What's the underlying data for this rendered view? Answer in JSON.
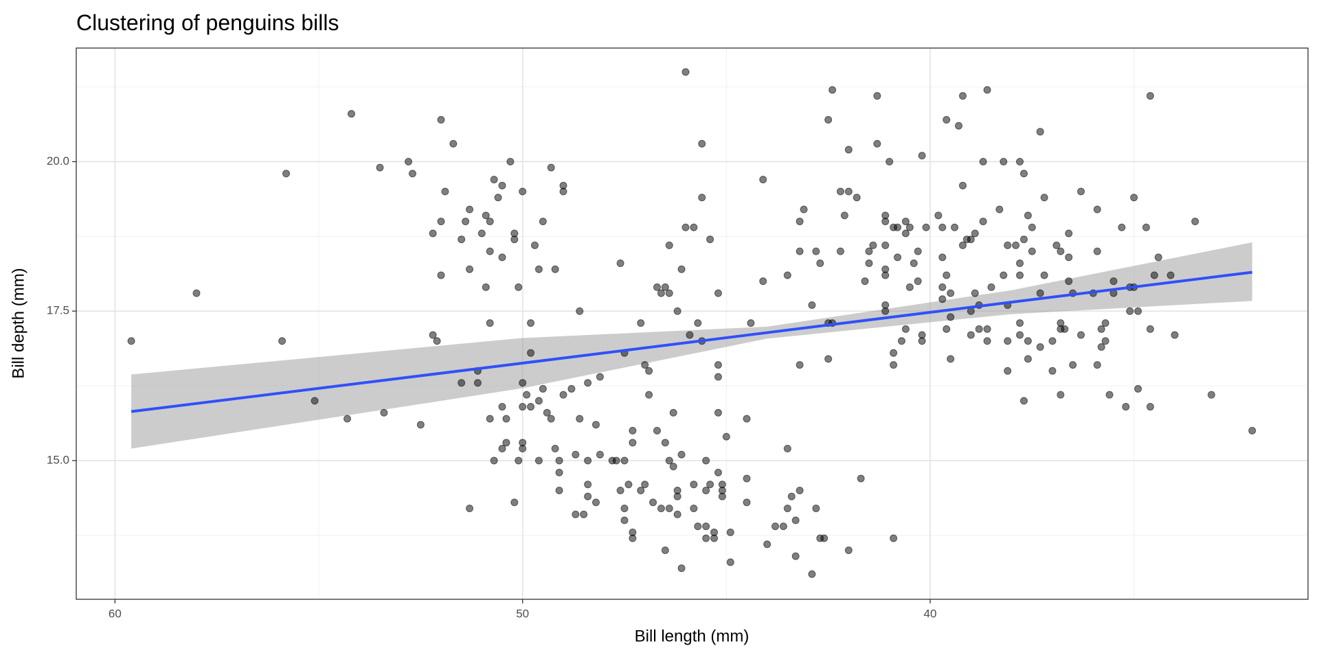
{
  "chart_data": {
    "type": "scatter",
    "title": "Clustering of penguins bills",
    "xlabel": "Bill length (mm)",
    "ylabel": "Bill depth (mm)",
    "x": [
      59.6,
      58.0,
      55.9,
      55.8,
      55.1,
      54.3,
      54.2,
      53.5,
      53.4,
      52.8,
      52.7,
      52.5,
      52.2,
      52.2,
      52.1,
      52.0,
      52.0,
      52.0,
      51.9,
      51.7,
      51.5,
      51.5,
      51.4,
      51.3,
      51.3,
      51.3,
      51.1,
      51.1,
      51.0,
      50.9,
      50.9,
      50.8,
      50.8,
      50.8,
      50.8,
      50.7,
      50.7,
      50.6,
      50.5,
      50.5,
      50.5,
      50.5,
      50.4,
      50.4,
      50.3,
      50.2,
      50.2,
      50.2,
      50.1,
      50.1,
      50.0,
      50.0,
      50.0,
      50.0,
      50.0,
      49.9,
      49.8,
      49.8,
      49.8,
      49.7,
      49.6,
      49.6,
      49.6,
      49.5,
      49.5,
      49.4,
      49.3,
      49.3,
      49.2,
      49.2,
      49.1,
      49.1,
      49.1,
      49.0,
      49.0,
      49.0,
      48.8,
      48.7,
      48.7,
      48.6,
      48.6,
      48.5,
      48.4,
      48.4,
      48.4,
      48.4,
      48.2,
      48.2,
      48.1,
      48.1,
      47.8,
      47.7,
      47.6,
      47.6,
      47.5,
      47.5,
      47.5,
      47.5,
      47.4,
      47.3,
      47.3,
      47.3,
      47.3,
      47.1,
      47.1,
      47.0,
      47.0,
      46.9,
      46.9,
      46.8,
      46.7,
      46.7,
      46.6,
      46.6,
      46.5,
      46.5,
      46.5,
      46.4,
      46.4,
      46.4,
      46.4,
      46.3,
      46.3,
      46.2,
      46.2,
      46.2,
      46.2,
      46.1,
      46.1,
      46.0,
      46.1,
      46.0,
      45.9,
      45.8,
      45.8,
      45.8,
      45.7,
      45.7,
      45.6,
      45.6,
      45.6,
      45.5,
      45.5,
      45.5,
      45.5,
      45.4,
      45.4,
      45.3,
      45.3,
      45.2,
      45.2,
      45.2,
      45.2,
      45.2,
      45.1,
      45.1,
      45.1,
      45.0,
      44.9,
      44.9,
      44.5,
      44.5,
      44.5,
      44.4,
      44.1,
      44.1,
      44.0,
      43.8,
      43.6,
      43.5,
      43.5,
      43.5,
      43.4,
      43.3,
      43.3,
      43.2,
      43.2,
      43.2,
      43.2,
      43.1,
      42.9,
      42.9,
      42.8,
      42.8,
      42.7,
      42.7,
      42.6,
      42.5,
      42.5,
      42.5,
      42.4,
      42.4,
      42.2,
      42.2,
      42.1,
      42.0,
      42.0,
      42.0,
      41.8,
      41.7,
      41.6,
      41.5,
      41.5,
      41.4,
      41.3,
      41.3,
      41.1,
      41.1,
      41.1,
      41.1,
      41.1,
      41.1,
      41.1,
      41.0,
      40.9,
      40.9,
      40.9,
      40.9,
      40.8,
      40.8,
      40.7,
      40.6,
      40.6,
      40.6,
      40.5,
      40.5,
      40.4,
      40.3,
      40.3,
      40.2,
      40.2,
      40.2,
      40.1,
      39.8,
      39.7,
      39.7,
      39.7,
      39.7,
      39.6,
      39.6,
      39.6,
      39.5,
      39.5,
      39.5,
      39.4,
      39.3,
      39.2,
      39.2,
      39.2,
      39.1,
      39.0,
      39.0,
      39.0,
      38.9,
      38.9,
      38.8,
      38.8,
      38.7,
      38.7,
      38.6,
      38.6,
      38.6,
      38.5,
      38.3,
      38.2,
      38.2,
      38.1,
      38.1,
      38.1,
      38.1,
      37.9,
      37.8,
      37.8,
      37.8,
      37.8,
      37.8,
      37.7,
      37.7,
      37.7,
      37.6,
      37.6,
      37.6,
      37.5,
      37.5,
      37.3,
      37.3,
      37.3,
      37.2,
      37.2,
      37.0,
      37.0,
      36.9,
      36.8,
      36.8,
      36.8,
      36.8,
      36.7,
      36.6,
      36.6,
      36.6,
      36.5,
      36.5,
      36.3,
      36.3,
      36.0,
      35.9,
      35.9,
      35.9,
      35.8,
      35.8,
      35.7,
      35.7,
      35.6,
      35.5,
      35.5,
      35.3,
      35.2,
      35.1,
      35.1,
      35.0,
      35.0,
      34.9,
      34.9,
      34.7,
      34.6,
      34.6,
      34.6,
      34.5,
      34.4,
      34.1,
      34.0,
      33.5,
      33.1,
      32.1
    ],
    "values": [
      17.0,
      17.8,
      17.0,
      19.8,
      16.0,
      15.7,
      20.8,
      19.9,
      15.8,
      20.0,
      19.8,
      15.6,
      18.8,
      17.1,
      17.0,
      20.7,
      19.0,
      18.1,
      19.5,
      20.3,
      16.3,
      18.7,
      19.0,
      14.2,
      19.2,
      18.2,
      16.5,
      16.3,
      18.8,
      17.9,
      19.1,
      19.0,
      18.5,
      17.3,
      15.7,
      19.7,
      15.0,
      19.4,
      19.6,
      18.4,
      15.9,
      15.2,
      15.7,
      15.3,
      20.0,
      18.8,
      18.7,
      14.3,
      17.9,
      15.0,
      19.5,
      16.3,
      15.9,
      15.3,
      15.2,
      16.1,
      17.3,
      16.8,
      15.9,
      18.6,
      18.2,
      15.0,
      16.0,
      16.2,
      19.0,
      15.8,
      19.9,
      15.7,
      18.2,
      15.2,
      15.0,
      14.8,
      14.5,
      19.6,
      19.5,
      16.1,
      16.2,
      15.1,
      14.1,
      17.5,
      15.7,
      14.1,
      16.3,
      15.0,
      14.6,
      14.4,
      15.6,
      14.3,
      16.4,
      15.1,
      15.0,
      15.0,
      18.3,
      14.5,
      16.8,
      14.2,
      15.0,
      14.0,
      14.6,
      13.8,
      15.5,
      15.3,
      13.7,
      17.3,
      14.5,
      14.6,
      16.6,
      16.5,
      16.1,
      14.3,
      15.5,
      17.9,
      14.2,
      17.8,
      17.9,
      15.3,
      13.5,
      17.8,
      18.6,
      15.0,
      14.2,
      15.8,
      14.9,
      17.5,
      14.5,
      14.4,
      14.1,
      18.2,
      15.1,
      18.9,
      13.2,
      21.5,
      17.1,
      18.9,
      14.6,
      14.2,
      17.3,
      13.9,
      19.4,
      20.3,
      17.0,
      15.0,
      14.5,
      13.7,
      13.9,
      18.7,
      14.6,
      13.8,
      13.7,
      17.8,
      16.6,
      16.4,
      15.8,
      14.8,
      14.5,
      14.4,
      14.6,
      15.4,
      13.8,
      13.3,
      14.7,
      14.3,
      15.7,
      17.3,
      19.7,
      18.0,
      13.6,
      13.9,
      13.9,
      14.2,
      15.2,
      18.1,
      14.4,
      14.0,
      13.4,
      19.0,
      18.5,
      16.6,
      14.5,
      19.2,
      17.6,
      13.1,
      18.5,
      14.2,
      18.3,
      13.7,
      13.7,
      20.7,
      17.3,
      16.7,
      17.3,
      21.2,
      19.5,
      18.5,
      19.1,
      20.2,
      19.5,
      13.5,
      19.4,
      14.7,
      18.0,
      18.5,
      18.3,
      18.6,
      21.1,
      20.3,
      19.1,
      19.0,
      18.6,
      18.2,
      18.1,
      17.6,
      17.5,
      20.0,
      18.9,
      16.8,
      16.6,
      13.7,
      18.9,
      18.4,
      17.0,
      19.0,
      18.8,
      17.2,
      18.9,
      17.9,
      18.3,
      18.5,
      18.0,
      20.1,
      17.1,
      17.0,
      18.9,
      19.1,
      18.9,
      18.4,
      17.9,
      17.7,
      20.7,
      18.1,
      17.2,
      17.8,
      17.4,
      16.7,
      18.9,
      20.6,
      18.6,
      21.1,
      19.6,
      18.7,
      18.7,
      17.5,
      17.1,
      18.8,
      17.8,
      17.2,
      17.6,
      19.0,
      20.0,
      17.0,
      17.2,
      21.2,
      17.9,
      19.2,
      20.0,
      18.1,
      18.6,
      16.5,
      17.0,
      17.6,
      18.6,
      20.0,
      18.1,
      18.3,
      17.1,
      17.3,
      16.0,
      18.7,
      19.8,
      19.1,
      17.0,
      16.7,
      18.9,
      18.5,
      20.5,
      17.8,
      16.9,
      19.4,
      18.1,
      16.5,
      17.0,
      18.6,
      18.5,
      16.1,
      17.3,
      17.2,
      17.2,
      18.8,
      18.4,
      18.0,
      17.8,
      16.6,
      19.5,
      17.1,
      17.8,
      16.6,
      19.2,
      18.5,
      16.9,
      17.2,
      17.3,
      17.0,
      16.1,
      18.0,
      17.8,
      18.9,
      15.9,
      17.9,
      17.5,
      19.4,
      17.9,
      16.2,
      17.5,
      18.9,
      15.9,
      17.2,
      21.1,
      18.1,
      18.4,
      18.1,
      17.1,
      19.0,
      16.1,
      15.5
    ],
    "color": "#000000",
    "fit": {
      "x": [
        59.6,
        50,
        44,
        38,
        32.1
      ],
      "y": [
        15.82,
        16.63,
        17.14,
        17.65,
        18.15
      ],
      "lower": [
        15.2,
        16.21,
        17.04,
        17.45,
        17.67
      ],
      "upper": [
        16.44,
        17.05,
        17.24,
        17.85,
        18.65
      ],
      "color": "#3050f8"
    },
    "xlim": [
      60.95,
      30.73
    ],
    "ylim": [
      12.68,
      21.9
    ],
    "xticks": [
      60,
      50,
      40
    ],
    "xminor": [
      55,
      45,
      35
    ],
    "yticks": [
      {
        "value": 15,
        "label": "15.0"
      },
      17.5,
      {
        "value": 20,
        "label": "20.0"
      }
    ],
    "yminor": [
      13.75,
      16.25,
      18.75,
      21.25
    ],
    "grid": true
  }
}
